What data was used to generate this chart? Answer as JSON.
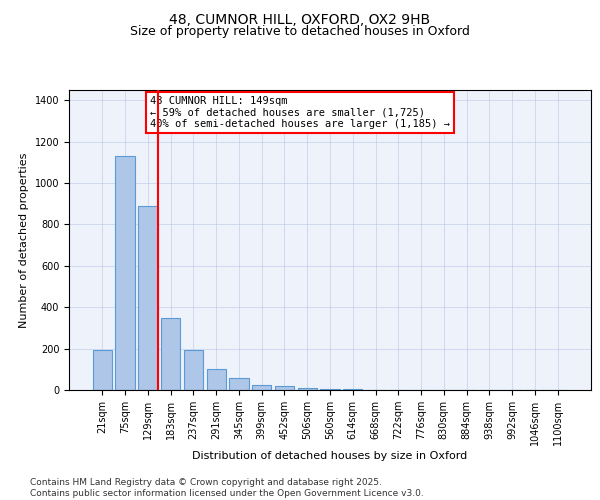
{
  "title1": "48, CUMNOR HILL, OXFORD, OX2 9HB",
  "title2": "Size of property relative to detached houses in Oxford",
  "xlabel": "Distribution of detached houses by size in Oxford",
  "ylabel": "Number of detached properties",
  "bar_labels": [
    "21sqm",
    "75sqm",
    "129sqm",
    "183sqm",
    "237sqm",
    "291sqm",
    "345sqm",
    "399sqm",
    "452sqm",
    "506sqm",
    "560sqm",
    "614sqm",
    "668sqm",
    "722sqm",
    "776sqm",
    "830sqm",
    "884sqm",
    "938sqm",
    "992sqm",
    "1046sqm",
    "1100sqm"
  ],
  "bar_values": [
    195,
    1130,
    890,
    350,
    195,
    100,
    60,
    25,
    20,
    10,
    5,
    3,
    2,
    1,
    1,
    1,
    0,
    0,
    0,
    0,
    0
  ],
  "bar_color": "#aec6e8",
  "bar_edge_color": "#5b9bd5",
  "vline_color": "red",
  "annotation_title": "48 CUMNOR HILL: 149sqm",
  "annotation_line1": "← 59% of detached houses are smaller (1,725)",
  "annotation_line2": "40% of semi-detached houses are larger (1,185) →",
  "ylim": [
    0,
    1450
  ],
  "yticks": [
    0,
    200,
    400,
    600,
    800,
    1000,
    1200,
    1400
  ],
  "background_color": "#eef2fb",
  "footer_line1": "Contains HM Land Registry data © Crown copyright and database right 2025.",
  "footer_line2": "Contains public sector information licensed under the Open Government Licence v3.0.",
  "title1_fontsize": 10,
  "title2_fontsize": 9,
  "ylabel_fontsize": 8,
  "xlabel_fontsize": 8,
  "tick_fontsize": 7,
  "footer_fontsize": 6.5,
  "annotation_fontsize": 7.5
}
